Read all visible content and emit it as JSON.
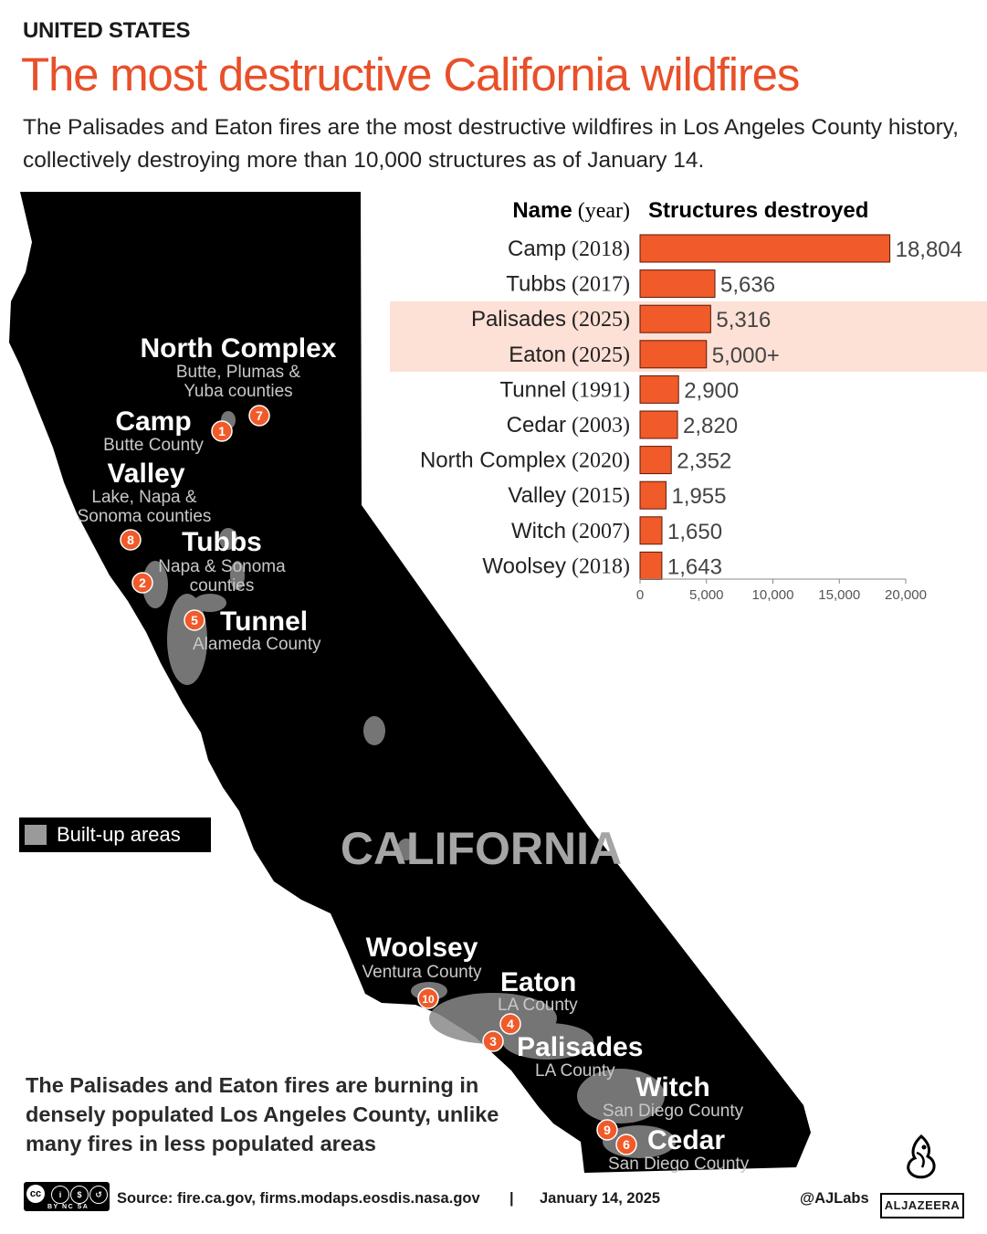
{
  "header": {
    "kicker": "UNITED STATES",
    "title": "The most destructive California wildfires",
    "subtitle": "The Palisades and Eaton fires are the most destructive wildfires in Los Angeles County history, collectively destroying more than 10,000 structures as of January 14."
  },
  "colors": {
    "accent": "#e8502a",
    "bar": "#f15a29",
    "highlight": "#fde0d6",
    "map": "#000000",
    "builtup": "#9a9a9a"
  },
  "chart_data": {
    "type": "bar",
    "orientation": "horizontal",
    "col_name_header": "Name",
    "col_year_header": "(year)",
    "col_value_header": "Structures destroyed",
    "categories": [
      "Camp",
      "Tubbs",
      "Palisades",
      "Eaton",
      "Tunnel",
      "Cedar",
      "North Complex",
      "Valley",
      "Witch",
      "Woolsey"
    ],
    "years": [
      "(2018)",
      "(2017)",
      "(2025)",
      "(2025)",
      "(1991)",
      "(2003)",
      "(2020)",
      "(2015)",
      "(2007)",
      "(2018)"
    ],
    "values": [
      18804,
      5636,
      5316,
      5000,
      2900,
      2820,
      2352,
      1955,
      1650,
      1643
    ],
    "value_labels": [
      "18,804",
      "5,636",
      "5,316",
      "5,000+",
      "2,900",
      "2,820",
      "2,352",
      "1,955",
      "1,650",
      "1,643"
    ],
    "highlighted": [
      "Palisades",
      "Eaton"
    ],
    "xlim": [
      0,
      20000
    ],
    "xticks": [
      0,
      5000,
      10000,
      15000,
      20000
    ],
    "xtick_labels": [
      "0",
      "5,000",
      "10,000",
      "15,000",
      "20,000"
    ]
  },
  "map": {
    "state_label": "CALIFORNIA",
    "legend_label": "Built-up areas",
    "fires": [
      {
        "num": "1",
        "name": "Camp",
        "county": [
          "Butte County"
        ]
      },
      {
        "num": "2",
        "name": "Tubbs",
        "county": [
          "Napa & Sonoma",
          "counties"
        ]
      },
      {
        "num": "3",
        "name": "Palisades",
        "county": [
          "LA County"
        ]
      },
      {
        "num": "4",
        "name": "Eaton",
        "county": [
          "LA County"
        ]
      },
      {
        "num": "5",
        "name": "Tunnel",
        "county": [
          "Alameda County"
        ]
      },
      {
        "num": "6",
        "name": "Cedar",
        "county": [
          "San Diego County"
        ]
      },
      {
        "num": "7",
        "name": "North Complex",
        "county": [
          "Butte, Plumas &",
          "Yuba counties"
        ]
      },
      {
        "num": "8",
        "name": "Valley",
        "county": [
          "Lake, Napa &",
          "Sonoma counties"
        ]
      },
      {
        "num": "9",
        "name": "Witch",
        "county": [
          "San Diego County"
        ]
      },
      {
        "num": "10",
        "name": "Woolsey",
        "county": [
          "Ventura County"
        ]
      }
    ]
  },
  "note": "The Palisades and Eaton fires are burning in densely populated Los Angeles County, unlike many fires in less populated areas",
  "footer": {
    "cc_license": "BY NC SA",
    "source": "Source:  fire.ca.gov, firms.modaps.eosdis.nasa.gov",
    "separator": "|",
    "date": "January 14, 2025",
    "handle": "@AJLabs",
    "brand": "ALJAZEERA"
  }
}
